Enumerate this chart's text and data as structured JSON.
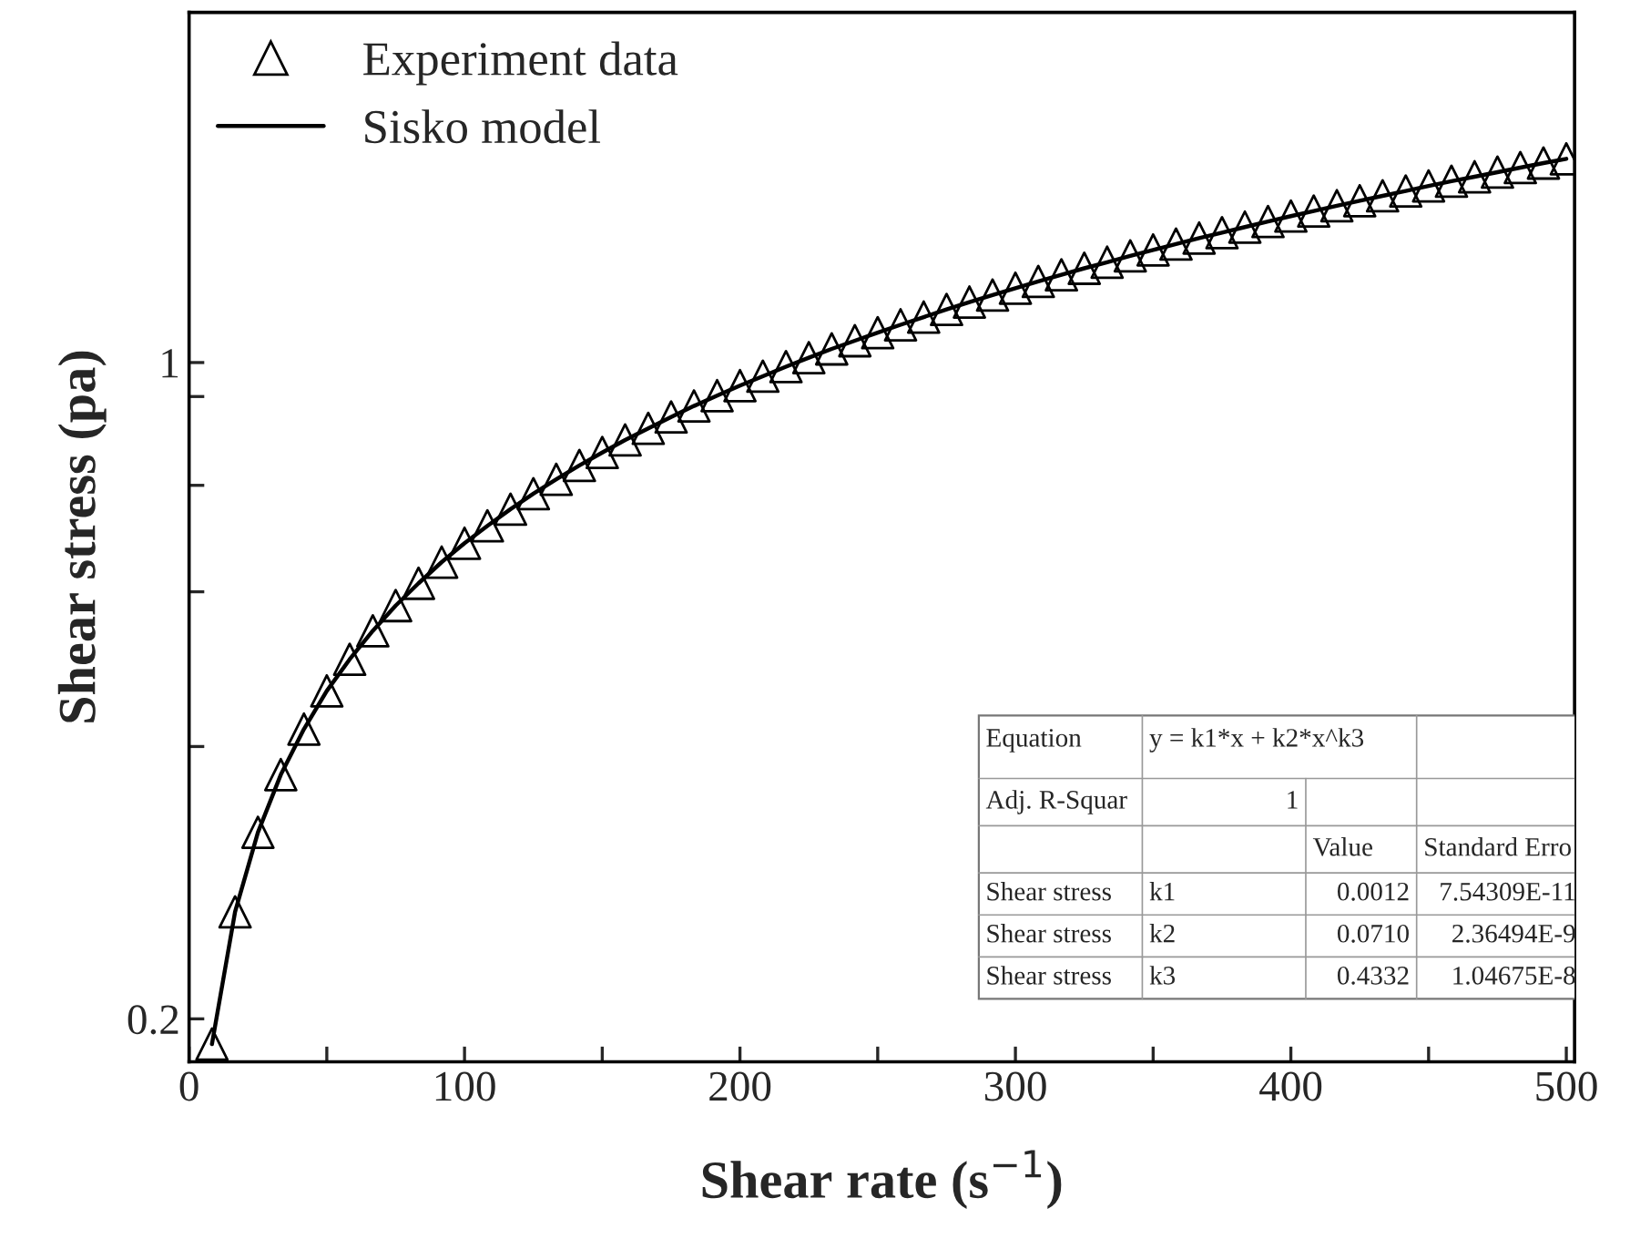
{
  "chart_data": {
    "type": "scatter",
    "xlabel": "Shear rate (s$^{−1}$)",
    "ylabel": "Shear stress (pa)",
    "x": [
      8.3,
      16.7,
      25,
      33.3,
      41.7,
      50,
      58.3,
      66.7,
      75,
      83.3,
      91.7,
      100,
      108.3,
      116.7,
      125,
      133.3,
      141.7,
      150,
      158.3,
      166.7,
      175,
      183.3,
      191.7,
      200,
      208.3,
      216.7,
      225,
      233.3,
      241.7,
      250,
      258.3,
      266.7,
      275,
      283.3,
      291.7,
      300,
      308.3,
      316.7,
      325,
      333.3,
      341.7,
      350,
      358.3,
      366.7,
      375,
      383.3,
      391.7,
      400,
      408.3,
      416.7,
      425,
      433.3,
      441.7,
      450,
      458.3,
      466.7,
      475,
      483.3,
      491.7,
      500
    ],
    "series": [
      {
        "name": "Experiment data",
        "marker": "triangle",
        "color": "#000000",
        "values": [
          0.188,
          0.26,
          0.316,
          0.364,
          0.407,
          0.447,
          0.483,
          0.518,
          0.551,
          0.582,
          0.613,
          0.642,
          0.67,
          0.698,
          0.725,
          0.751,
          0.777,
          0.802,
          0.827,
          0.851,
          0.875,
          0.899,
          0.922,
          0.945,
          0.967,
          0.99,
          1.012,
          1.034,
          1.055,
          1.076,
          1.097,
          1.118,
          1.139,
          1.16,
          1.18,
          1.2,
          1.22,
          1.24,
          1.26,
          1.279,
          1.299,
          1.318,
          1.337,
          1.357,
          1.375,
          1.394,
          1.413,
          1.432,
          1.45,
          1.469,
          1.487,
          1.505,
          1.523,
          1.542,
          1.56,
          1.577,
          1.595,
          1.613,
          1.631,
          1.648
        ]
      },
      {
        "name": "Sisko model",
        "type": "line",
        "marker": "none",
        "line_style": "solid",
        "color": "#000000",
        "values": [
          0.188,
          0.26,
          0.316,
          0.364,
          0.407,
          0.447,
          0.483,
          0.518,
          0.551,
          0.582,
          0.613,
          0.642,
          0.67,
          0.698,
          0.725,
          0.751,
          0.777,
          0.802,
          0.827,
          0.851,
          0.875,
          0.899,
          0.922,
          0.945,
          0.967,
          0.99,
          1.012,
          1.034,
          1.055,
          1.076,
          1.097,
          1.118,
          1.139,
          1.16,
          1.18,
          1.2,
          1.22,
          1.24,
          1.26,
          1.279,
          1.299,
          1.318,
          1.337,
          1.357,
          1.375,
          1.394,
          1.413,
          1.432,
          1.45,
          1.469,
          1.487,
          1.505,
          1.523,
          1.542,
          1.56,
          1.577,
          1.595,
          1.613,
          1.631,
          1.648
        ]
      }
    ],
    "log": "y",
    "xlim": [
      0,
      503
    ],
    "ylim": [
      0.18,
      2.36
    ],
    "xticks": [
      0,
      {
        "value": 50,
        "label": null
      },
      100,
      {
        "value": 150,
        "label": null
      },
      200,
      {
        "value": 250,
        "label": null
      },
      300,
      {
        "value": 350,
        "label": null
      },
      400,
      {
        "value": 450,
        "label": null
      },
      500
    ],
    "yticks": [
      0.2,
      {
        "value": 0.39,
        "label": null
      },
      {
        "value": 0.57,
        "label": null
      },
      {
        "value": 0.74,
        "label": null
      },
      {
        "value": 0.92,
        "label": null
      },
      1
    ],
    "grid": false,
    "legend": "top left",
    "annotations": [
      "Equation",
      "y = k1*x + k2*x^k3",
      "Adj. R-Squar",
      "1",
      "Value",
      "Standard Erro",
      "Shear stress",
      "k1",
      "0.0012",
      "7.54309E-11",
      "Shear stress",
      "k2",
      "0.0710",
      "2.36494E-9",
      "Shear stress",
      "k3",
      "0.4332",
      "1.04675E-8"
    ]
  }
}
